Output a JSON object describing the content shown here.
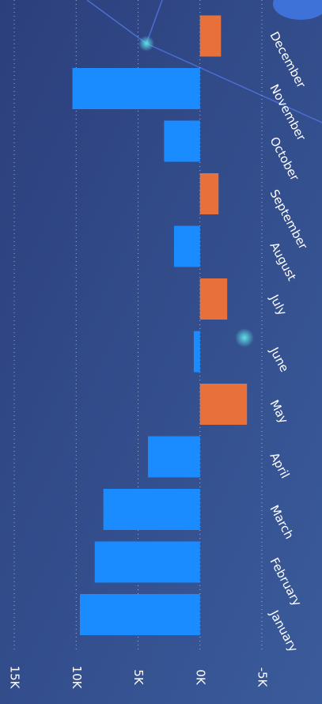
{
  "chart_data": {
    "type": "bar",
    "orientation": "horizontal",
    "categories": [
      "January",
      "February",
      "March",
      "April",
      "May",
      "June",
      "July",
      "August",
      "September",
      "October",
      "November",
      "December"
    ],
    "values": [
      9700,
      8500,
      7800,
      4200,
      -3800,
      500,
      -2200,
      2100,
      -1500,
      2900,
      10300,
      -1700
    ],
    "positive_color": "#1a8cff",
    "negative_color": "#e8703a",
    "ylim": [
      -5000,
      15000
    ],
    "yticks": [
      {
        "value": 15000,
        "label": "15K"
      },
      {
        "value": 10000,
        "label": "10K"
      },
      {
        "value": 5000,
        "label": "5K"
      },
      {
        "value": 0,
        "label": "0K"
      },
      {
        "value": -5000,
        "label": "-5K"
      }
    ],
    "grid": true
  }
}
